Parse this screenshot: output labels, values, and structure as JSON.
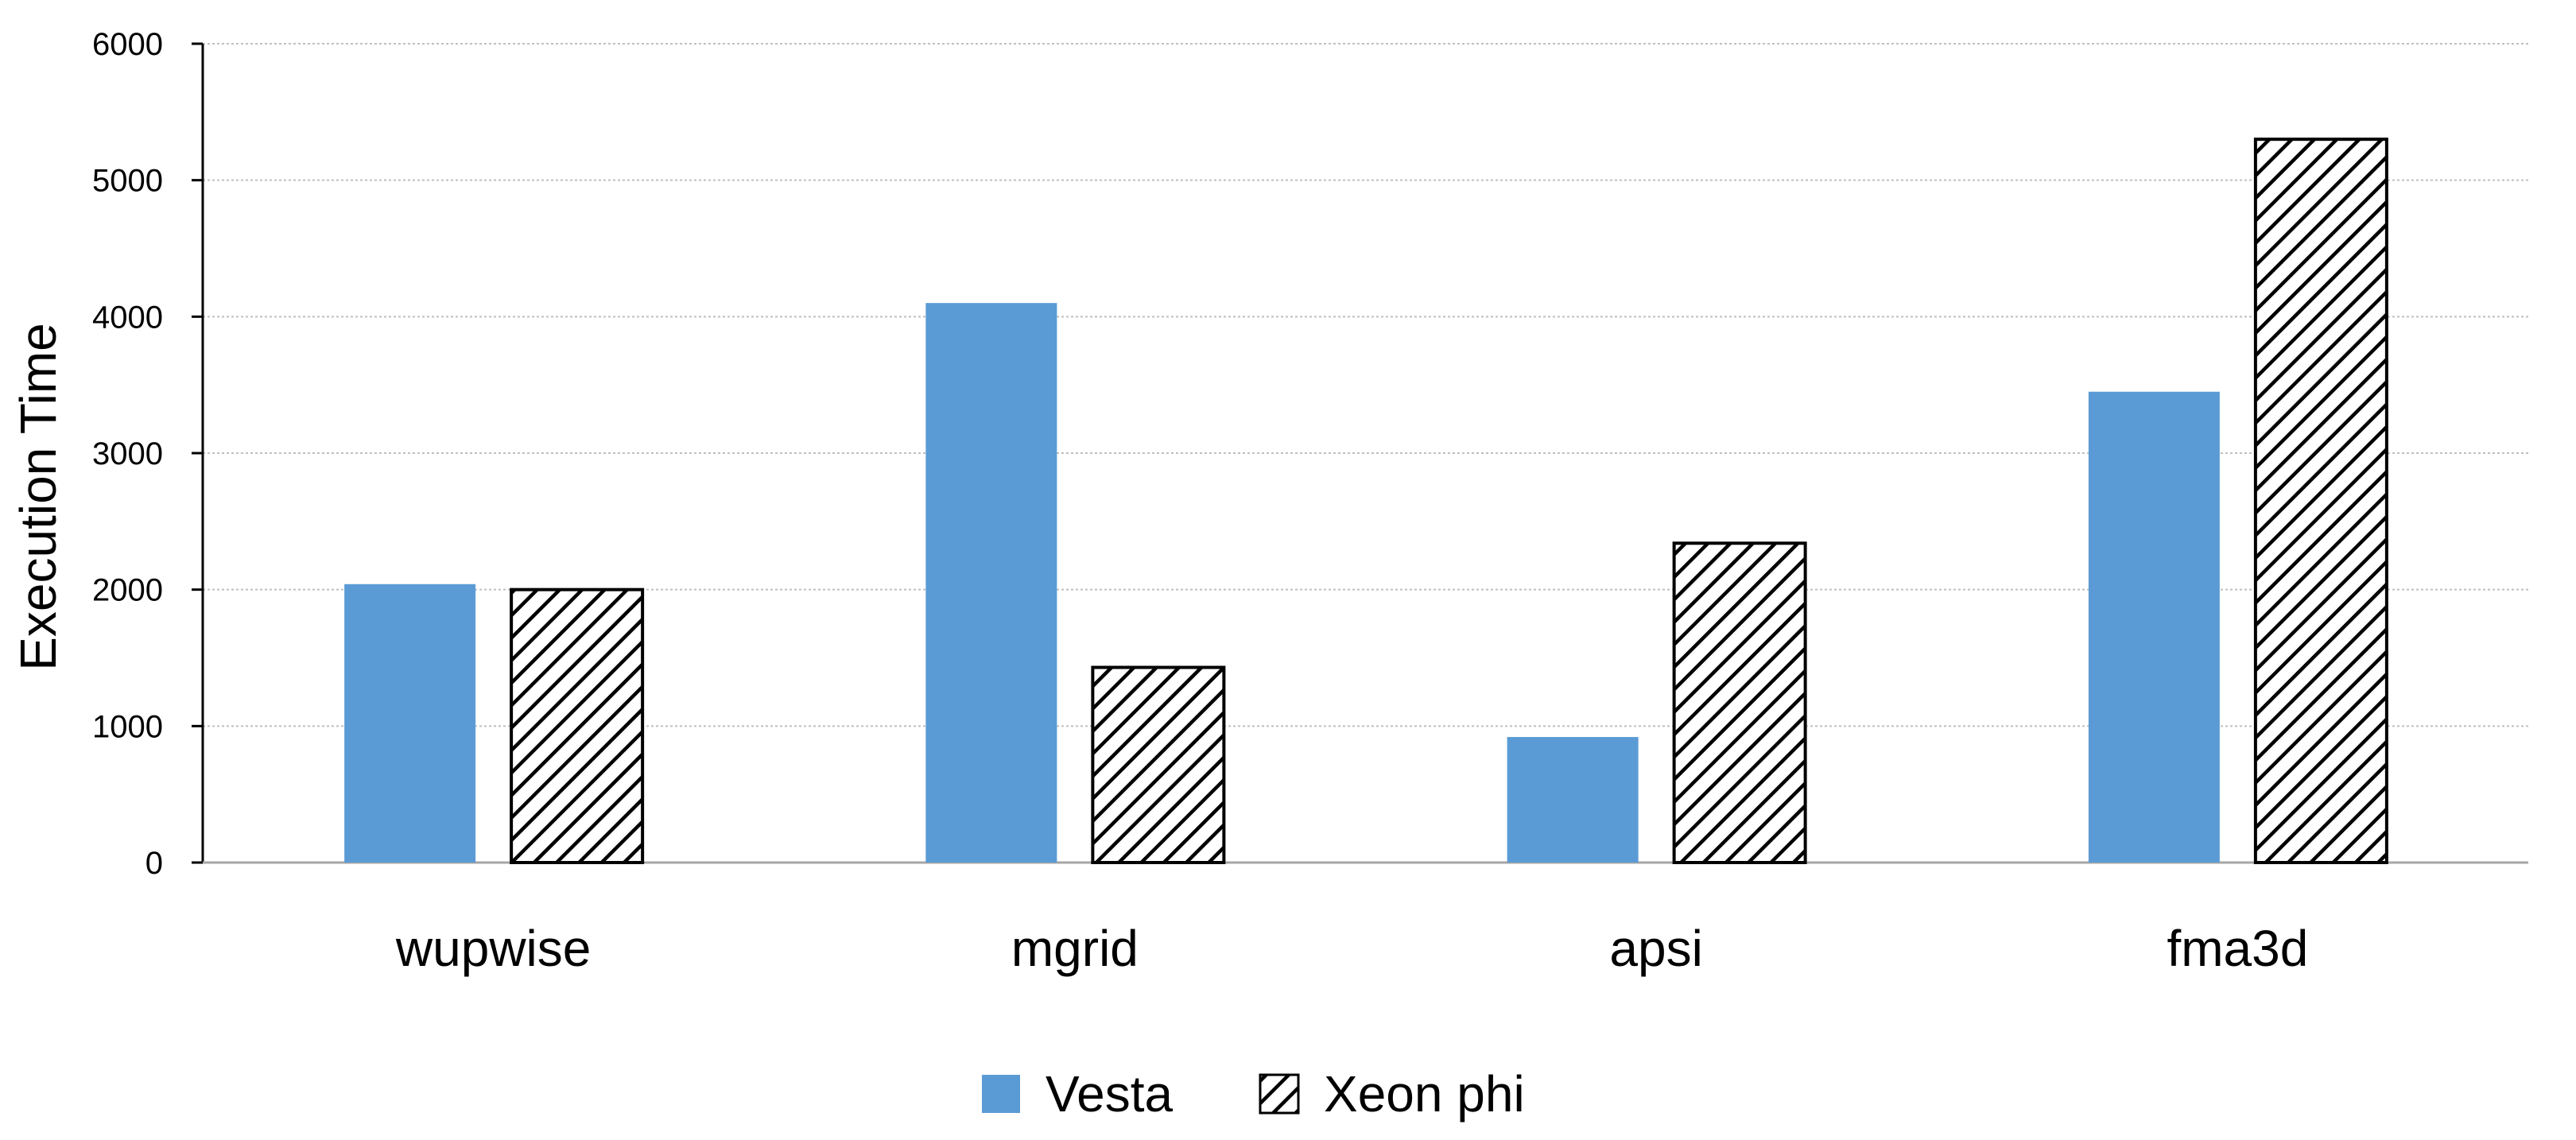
{
  "colors": {
    "vesta": "#5b9bd5",
    "xeon": "#000000",
    "grid": "#bfbfbf",
    "axis": "#000000"
  },
  "chart_data": {
    "type": "bar",
    "title": "",
    "xlabel": "",
    "ylabel": "Execution Time",
    "ylim": [
      0,
      6000
    ],
    "yticks": [
      0,
      1000,
      2000,
      3000,
      4000,
      5000,
      6000
    ],
    "grid": true,
    "legend_position": "bottom-center",
    "categories": [
      "wupwise",
      "mgrid",
      "apsi",
      "fma3d"
    ],
    "series": [
      {
        "name": "Vesta",
        "fill": "solid",
        "values": [
          2040,
          4100,
          920,
          3450
        ]
      },
      {
        "name": "Xeon phi",
        "fill": "hatched",
        "values": [
          2000,
          1430,
          2340,
          5300
        ]
      }
    ]
  }
}
